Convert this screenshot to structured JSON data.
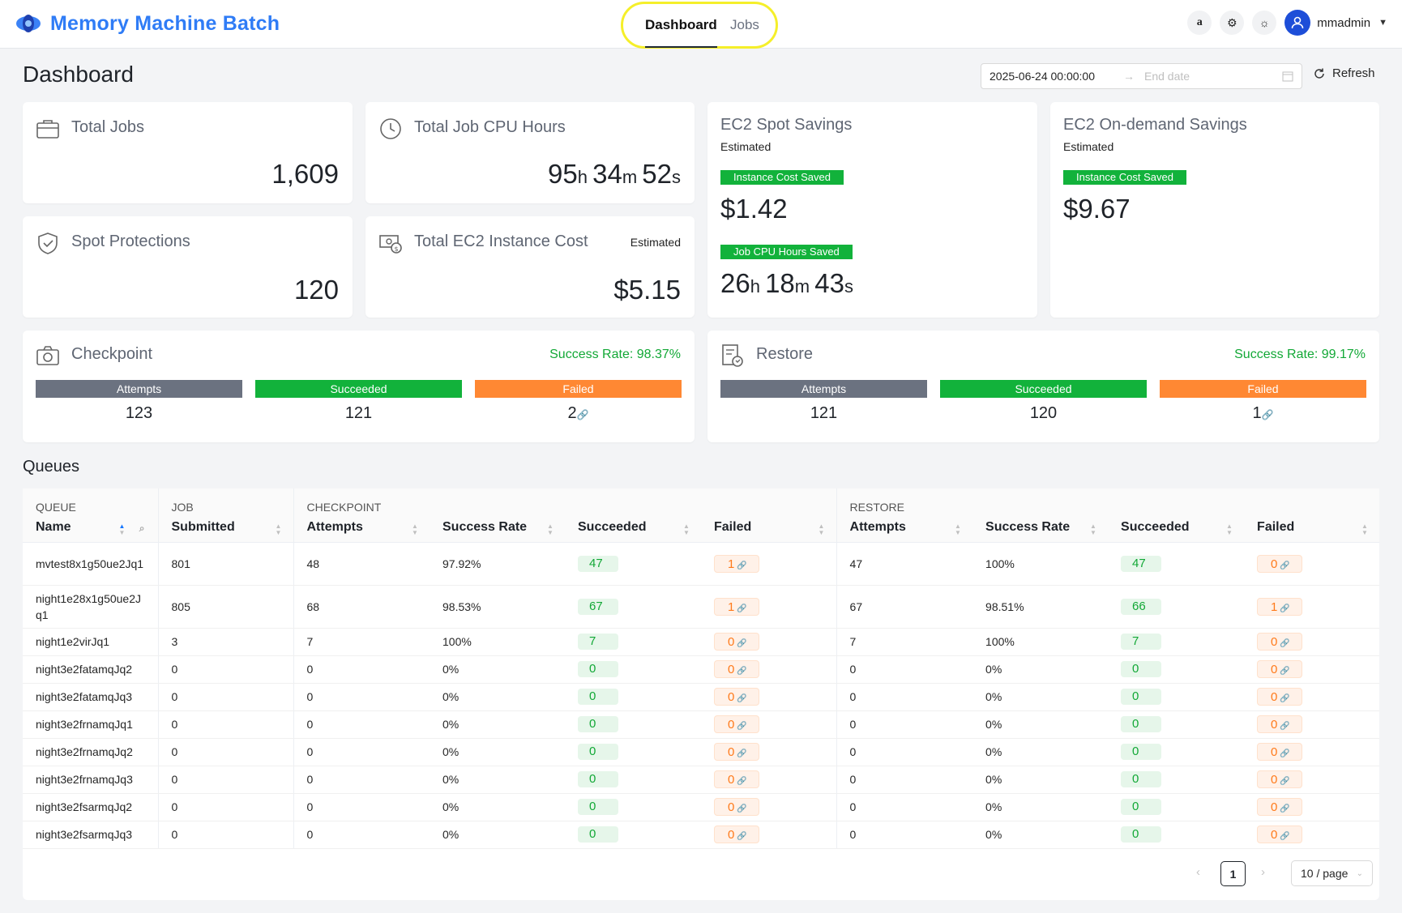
{
  "header": {
    "brand": "Memory Machine Batch",
    "tabs": [
      {
        "label": "Dashboard",
        "active": true
      },
      {
        "label": "Jobs",
        "active": false
      }
    ],
    "icons": [
      "amazon-icon",
      "gear-icon",
      "sun-icon"
    ],
    "user": "mmadmin"
  },
  "page": {
    "title": "Dashboard",
    "date_start": "2025-06-24 00:00:00",
    "date_end_placeholder": "End date",
    "refresh_label": "Refresh"
  },
  "cards": {
    "total_jobs": {
      "title": "Total Jobs",
      "value": "1,609"
    },
    "cpu_hours": {
      "title": "Total Job CPU Hours",
      "h": "95",
      "m": "34",
      "s": "52"
    },
    "spot_protections": {
      "title": "Spot Protections",
      "value": "120"
    },
    "ec2_cost": {
      "title": "Total EC2 Instance Cost",
      "note": "Estimated",
      "value": "$5.15"
    },
    "spot_savings": {
      "title": "EC2 Spot Savings",
      "sub": "Estimated",
      "tag1": "Instance Cost Saved",
      "value1": "$1.42",
      "tag2": "Job CPU Hours Saved",
      "h": "26",
      "m": "18",
      "s": "43"
    },
    "ondemand_savings": {
      "title": "EC2 On-demand Savings",
      "sub": "Estimated",
      "tag1": "Instance Cost Saved",
      "value1": "$9.67"
    },
    "checkpoint": {
      "title": "Checkpoint",
      "rate": "Success Rate: 98.37%",
      "labels": [
        "Attempts",
        "Succeeded",
        "Failed"
      ],
      "values": [
        "123",
        "121",
        "2"
      ]
    },
    "restore": {
      "title": "Restore",
      "rate": "Success Rate: 99.17%",
      "labels": [
        "Attempts",
        "Succeeded",
        "Failed"
      ],
      "values": [
        "121",
        "120",
        "1"
      ]
    }
  },
  "queues": {
    "title": "Queues",
    "groups": {
      "queue": "QUEUE",
      "job": "JOB",
      "checkpoint": "CHECKPOINT",
      "restore": "RESTORE"
    },
    "columns": [
      "Name",
      "Submitted",
      "Attempts",
      "Success Rate",
      "Succeeded",
      "Failed",
      "Attempts",
      "Success Rate",
      "Succeeded",
      "Failed"
    ],
    "rows": [
      [
        "mvtest8x1g50ue2Jq1",
        "801",
        "48",
        "97.92%",
        "47",
        "1",
        "47",
        "100%",
        "47",
        "0"
      ],
      [
        "night1e28x1g50ue2Jq1",
        "805",
        "68",
        "98.53%",
        "67",
        "1",
        "67",
        "98.51%",
        "66",
        "1"
      ],
      [
        "night1e2virJq1",
        "3",
        "7",
        "100%",
        "7",
        "0",
        "7",
        "100%",
        "7",
        "0"
      ],
      [
        "night3e2fatamqJq2",
        "0",
        "0",
        "0%",
        "0",
        "0",
        "0",
        "0%",
        "0",
        "0"
      ],
      [
        "night3e2fatamqJq3",
        "0",
        "0",
        "0%",
        "0",
        "0",
        "0",
        "0%",
        "0",
        "0"
      ],
      [
        "night3e2frnamqJq1",
        "0",
        "0",
        "0%",
        "0",
        "0",
        "0",
        "0%",
        "0",
        "0"
      ],
      [
        "night3e2frnamqJq2",
        "0",
        "0",
        "0%",
        "0",
        "0",
        "0",
        "0%",
        "0",
        "0"
      ],
      [
        "night3e2frnamqJq3",
        "0",
        "0",
        "0%",
        "0",
        "0",
        "0",
        "0%",
        "0",
        "0"
      ],
      [
        "night3e2fsarmqJq2",
        "0",
        "0",
        "0%",
        "0",
        "0",
        "0",
        "0%",
        "0",
        "0"
      ],
      [
        "night3e2fsarmqJq3",
        "0",
        "0",
        "0%",
        "0",
        "0",
        "0",
        "0%",
        "0",
        "0"
      ]
    ],
    "page": "1",
    "page_size": "10 / page"
  },
  "colors": {
    "accent": "#2f7cf6",
    "success": "#12b23b",
    "failed": "#ff8833",
    "attempts": "#6b7280"
  }
}
